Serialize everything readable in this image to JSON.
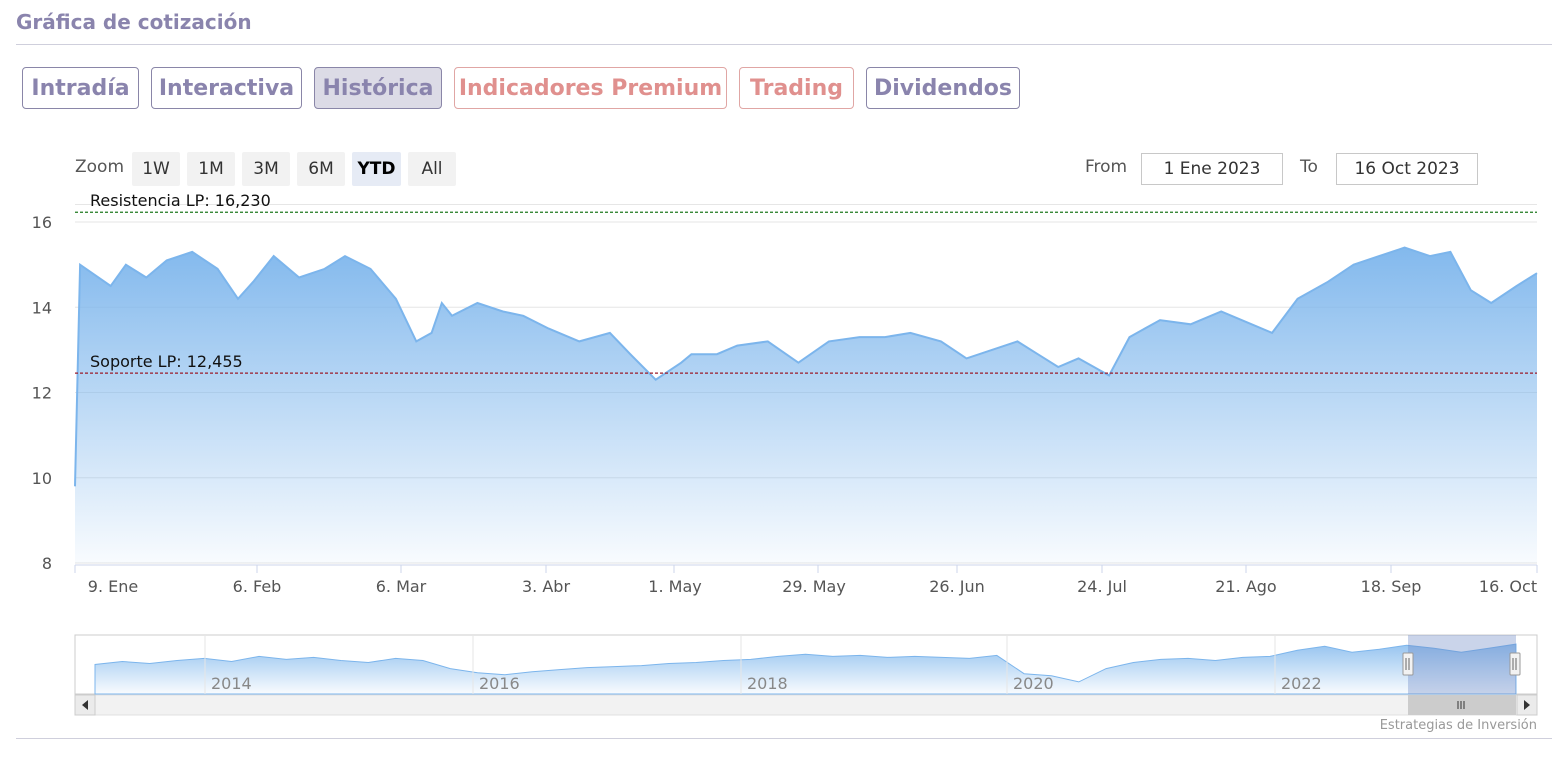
{
  "page": {
    "title": "Gráfica de cotización"
  },
  "tabs": [
    {
      "label": "Intradía",
      "active": false,
      "premium": false
    },
    {
      "label": "Interactiva",
      "active": false,
      "premium": false
    },
    {
      "label": "Histórica",
      "active": true,
      "premium": false
    },
    {
      "label": "Indicadores Premium",
      "active": false,
      "premium": true
    },
    {
      "label": "Trading",
      "active": false,
      "premium": true
    },
    {
      "label": "Dividendos",
      "active": false,
      "premium": false
    }
  ],
  "range_selector": {
    "zoom_label": "Zoom",
    "buttons": [
      "1W",
      "1M",
      "3M",
      "6M",
      "YTD",
      "All"
    ],
    "selected": "YTD",
    "from_label": "From",
    "from_value": "1 Ene 2023",
    "to_label": "To",
    "to_value": "16 Oct 2023"
  },
  "colors": {
    "accent": "#8a84ad",
    "premium": "#e0908e",
    "series": "#7cb5ec",
    "resistance": "#1e7a1e",
    "support": "#9b1b2a"
  },
  "chart_data": {
    "type": "area",
    "ylim": [
      8,
      16.4
    ],
    "y_ticks": [
      8,
      10,
      12,
      14,
      16
    ],
    "x_ticks": [
      "9. Ene",
      "6. Feb",
      "6. Mar",
      "3. Abr",
      "1. May",
      "29. May",
      "26. Jun",
      "24. Jul",
      "21. Ago",
      "18. Sep",
      "16. Oct"
    ],
    "grid": true,
    "series": [
      {
        "x": [
          "2023-01-02",
          "2023-01-03",
          "2023-01-09",
          "2023-01-12",
          "2023-01-16",
          "2023-01-20",
          "2023-01-25",
          "2023-01-30",
          "2023-02-03",
          "2023-02-06",
          "2023-02-10",
          "2023-02-15",
          "2023-02-20",
          "2023-02-24",
          "2023-03-01",
          "2023-03-06",
          "2023-03-10",
          "2023-03-13",
          "2023-03-15",
          "2023-03-17",
          "2023-03-22",
          "2023-03-27",
          "2023-03-31",
          "2023-04-05",
          "2023-04-11",
          "2023-04-17",
          "2023-04-21",
          "2023-04-26",
          "2023-05-01",
          "2023-05-03",
          "2023-05-08",
          "2023-05-12",
          "2023-05-18",
          "2023-05-24",
          "2023-05-30",
          "2023-06-05",
          "2023-06-10",
          "2023-06-15",
          "2023-06-21",
          "2023-06-26",
          "2023-07-01",
          "2023-07-06",
          "2023-07-10",
          "2023-07-14",
          "2023-07-18",
          "2023-07-24",
          "2023-07-28",
          "2023-08-03",
          "2023-08-09",
          "2023-08-15",
          "2023-08-21",
          "2023-08-25",
          "2023-08-30",
          "2023-09-05",
          "2023-09-10",
          "2023-09-15",
          "2023-09-20",
          "2023-09-25",
          "2023-09-29",
          "2023-10-03",
          "2023-10-07",
          "2023-10-12",
          "2023-10-16"
        ],
        "y": [
          9.8,
          15.0,
          14.5,
          15.0,
          14.7,
          15.1,
          15.3,
          14.9,
          14.2,
          14.6,
          15.2,
          14.7,
          14.9,
          15.2,
          14.9,
          14.2,
          13.2,
          13.4,
          14.1,
          13.8,
          14.1,
          13.9,
          13.8,
          13.5,
          13.2,
          13.4,
          12.9,
          12.3,
          12.7,
          12.9,
          12.9,
          13.1,
          13.2,
          12.7,
          13.2,
          13.3,
          13.3,
          13.4,
          13.2,
          12.8,
          13.0,
          13.2,
          12.9,
          12.6,
          12.8,
          12.4,
          13.3,
          13.7,
          13.6,
          13.9,
          13.6,
          13.4,
          14.2,
          14.6,
          15.0,
          15.2,
          15.4,
          15.2,
          15.3,
          14.4,
          14.1,
          14.5,
          14.8
        ]
      }
    ],
    "annotations": [
      {
        "label": "Resistencia LP: 16,230",
        "value": 16.23
      },
      {
        "label": "Soporte LP: 12,455",
        "value": 12.455
      }
    ],
    "navigator": {
      "labels": [
        "2014",
        "2016",
        "2018",
        "2020",
        "2022"
      ],
      "values": [
        13.8,
        14.1,
        13.9,
        14.2,
        14.4,
        14.1,
        14.6,
        14.3,
        14.5,
        14.2,
        14.0,
        14.4,
        14.2,
        13.4,
        13.0,
        12.8,
        13.1,
        13.3,
        13.5,
        13.6,
        13.7,
        13.9,
        14.0,
        14.2,
        14.3,
        14.6,
        14.8,
        14.6,
        14.7,
        14.5,
        14.6,
        14.5,
        14.4,
        14.7,
        12.9,
        12.7,
        12.1,
        13.4,
        14.0,
        14.3,
        14.4,
        14.2,
        14.5,
        14.6,
        15.2,
        15.6,
        15.0,
        15.3,
        15.7,
        15.4,
        15.0,
        15.4,
        15.8
      ]
    },
    "credit": "Estrategias de Inversión"
  }
}
